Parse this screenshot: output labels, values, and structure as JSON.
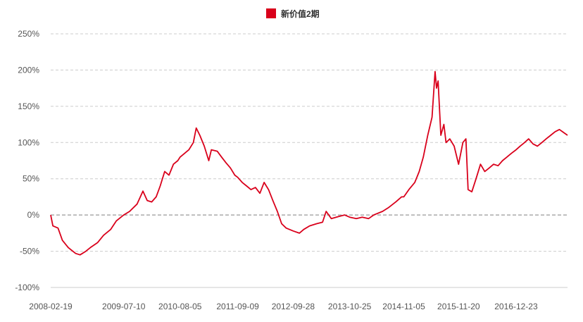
{
  "chart_data": {
    "type": "line",
    "title": "",
    "xlabel": "",
    "ylabel": "",
    "legend": {
      "position": "top-center"
    },
    "grid": {
      "y": true,
      "x": false,
      "style": "dashed"
    },
    "y_axis": {
      "min": -100,
      "max": 250,
      "ticks": [
        250,
        200,
        150,
        100,
        50,
        0,
        -50,
        -100
      ],
      "tick_labels": [
        "250%",
        "200%",
        "150%",
        "100%",
        "50%",
        "0%",
        "-50%",
        "-100%"
      ]
    },
    "x_axis": {
      "min": "2008-02-19",
      "max": "2017-12-15",
      "tick_labels": [
        "2008-02-19",
        "2009-07-10",
        "2010-08-05",
        "2011-09-09",
        "2012-09-28",
        "2013-10-25",
        "2014-11-05",
        "2015-11-20",
        "2016-12-23"
      ]
    },
    "series": [
      {
        "name": "新价值2期",
        "color": "#d9001b",
        "points": [
          [
            "2008-02-19",
            0
          ],
          [
            "2008-03-05",
            -15
          ],
          [
            "2008-04-10",
            -18
          ],
          [
            "2008-05-10",
            -35
          ],
          [
            "2008-06-20",
            -45
          ],
          [
            "2008-08-10",
            -53
          ],
          [
            "2008-09-10",
            -55
          ],
          [
            "2008-10-20",
            -50
          ],
          [
            "2008-11-20",
            -45
          ],
          [
            "2009-01-10",
            -38
          ],
          [
            "2009-02-20",
            -28
          ],
          [
            "2009-04-10",
            -20
          ],
          [
            "2009-05-20",
            -8
          ],
          [
            "2009-07-10",
            0
          ],
          [
            "2009-08-20",
            5
          ],
          [
            "2009-10-10",
            15
          ],
          [
            "2009-11-20",
            33
          ],
          [
            "2009-12-20",
            20
          ],
          [
            "2010-01-20",
            18
          ],
          [
            "2010-02-20",
            25
          ],
          [
            "2010-03-20",
            40
          ],
          [
            "2010-04-20",
            60
          ],
          [
            "2010-05-20",
            55
          ],
          [
            "2010-06-20",
            70
          ],
          [
            "2010-07-20",
            75
          ],
          [
            "2010-08-05",
            80
          ],
          [
            "2010-09-05",
            85
          ],
          [
            "2010-10-05",
            90
          ],
          [
            "2010-11-05",
            100
          ],
          [
            "2010-11-25",
            120
          ],
          [
            "2010-12-20",
            110
          ],
          [
            "2011-01-20",
            95
          ],
          [
            "2011-02-20",
            75
          ],
          [
            "2011-03-10",
            90
          ],
          [
            "2011-04-20",
            88
          ],
          [
            "2011-05-20",
            80
          ],
          [
            "2011-06-20",
            72
          ],
          [
            "2011-07-20",
            65
          ],
          [
            "2011-08-20",
            55
          ],
          [
            "2011-09-09",
            52
          ],
          [
            "2011-10-10",
            45
          ],
          [
            "2011-11-10",
            40
          ],
          [
            "2011-12-10",
            35
          ],
          [
            "2012-01-10",
            38
          ],
          [
            "2012-02-10",
            30
          ],
          [
            "2012-03-10",
            45
          ],
          [
            "2012-04-10",
            35
          ],
          [
            "2012-05-10",
            20
          ],
          [
            "2012-06-10",
            5
          ],
          [
            "2012-07-10",
            -12
          ],
          [
            "2012-08-10",
            -18
          ],
          [
            "2012-09-28",
            -22
          ],
          [
            "2012-11-10",
            -25
          ],
          [
            "2012-12-10",
            -20
          ],
          [
            "2013-01-20",
            -15
          ],
          [
            "2013-03-10",
            -12
          ],
          [
            "2013-04-20",
            -10
          ],
          [
            "2013-05-15",
            5
          ],
          [
            "2013-06-20",
            -5
          ],
          [
            "2013-08-10",
            -2
          ],
          [
            "2013-09-20",
            0
          ],
          [
            "2013-10-25",
            -3
          ],
          [
            "2013-12-10",
            -5
          ],
          [
            "2014-01-20",
            -3
          ],
          [
            "2014-03-05",
            -5
          ],
          [
            "2014-04-10",
            0
          ],
          [
            "2014-06-10",
            5
          ],
          [
            "2014-07-20",
            10
          ],
          [
            "2014-09-10",
            18
          ],
          [
            "2014-10-20",
            25
          ],
          [
            "2014-11-05",
            25
          ],
          [
            "2014-12-10",
            35
          ],
          [
            "2015-01-20",
            45
          ],
          [
            "2015-02-20",
            60
          ],
          [
            "2015-03-20",
            80
          ],
          [
            "2015-04-20",
            110
          ],
          [
            "2015-05-20",
            135
          ],
          [
            "2015-06-10",
            198
          ],
          [
            "2015-06-20",
            175
          ],
          [
            "2015-07-01",
            185
          ],
          [
            "2015-07-20",
            110
          ],
          [
            "2015-08-10",
            125
          ],
          [
            "2015-08-25",
            100
          ],
          [
            "2015-09-20",
            105
          ],
          [
            "2015-10-20",
            95
          ],
          [
            "2015-11-20",
            70
          ],
          [
            "2015-12-20",
            100
          ],
          [
            "2016-01-10",
            105
          ],
          [
            "2016-01-25",
            35
          ],
          [
            "2016-02-20",
            32
          ],
          [
            "2016-03-20",
            50
          ],
          [
            "2016-04-20",
            70
          ],
          [
            "2016-05-20",
            60
          ],
          [
            "2016-06-20",
            65
          ],
          [
            "2016-07-20",
            70
          ],
          [
            "2016-08-20",
            68
          ],
          [
            "2016-09-20",
            75
          ],
          [
            "2016-10-20",
            80
          ],
          [
            "2016-11-20",
            85
          ],
          [
            "2016-12-23",
            90
          ],
          [
            "2017-01-20",
            95
          ],
          [
            "2017-02-20",
            100
          ],
          [
            "2017-03-20",
            105
          ],
          [
            "2017-04-20",
            98
          ],
          [
            "2017-05-20",
            95
          ],
          [
            "2017-06-20",
            100
          ],
          [
            "2017-07-20",
            105
          ],
          [
            "2017-08-20",
            110
          ],
          [
            "2017-09-20",
            115
          ],
          [
            "2017-10-20",
            118
          ],
          [
            "2017-11-10",
            115
          ],
          [
            "2017-12-15",
            110
          ]
        ]
      }
    ]
  }
}
